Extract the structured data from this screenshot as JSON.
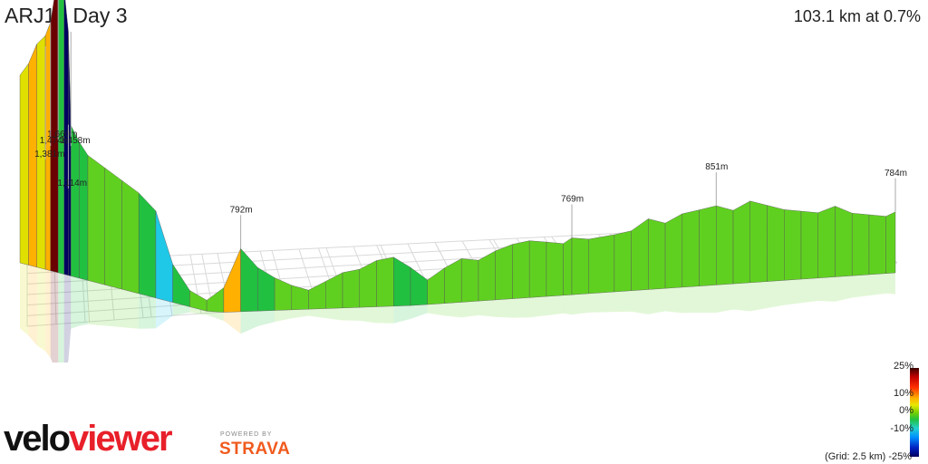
{
  "header": {
    "title": "ARJ17 Day 3",
    "summary": "103.1 km at 0.7%"
  },
  "gradient_scale": {
    "ticks": [
      "25%",
      "10%",
      "0%",
      "-10%"
    ],
    "bottom_tick": "-25%",
    "grid_note": "(Grid: 2.5 km)"
  },
  "branding": {
    "logo_part1": "velo",
    "logo_part2": "viewer",
    "powered_by": "POWERED BY",
    "strava": "STRAVA"
  },
  "chart_data": {
    "type": "area",
    "title": "ARJ17 Day 3",
    "subtitle": "103.1 km at 0.7%",
    "xlabel": "",
    "ylabel": "",
    "xlim": [
      0,
      103.1
    ],
    "grid": true,
    "color_scale": {
      "min": -25,
      "max": 25,
      "labels": [
        "25%",
        "10%",
        "0%",
        "-10%",
        "-25%"
      ]
    },
    "elevation_labels": [
      {
        "label": "1,660m",
        "x": 4.5,
        "y": 1660
      },
      {
        "label": "1,474m",
        "x": 3.6,
        "y": 1474
      },
      {
        "label": "1,458m",
        "x": 6.0,
        "y": 1458
      },
      {
        "label": "1,381m",
        "x": 3.0,
        "y": 1381
      },
      {
        "label": "1,114m",
        "x": 5.7,
        "y": 1114
      },
      {
        "label": "792m",
        "x": 26.0,
        "y": 792
      },
      {
        "label": "769m",
        "x": 65.0,
        "y": 769
      },
      {
        "label": "851m",
        "x": 82.0,
        "y": 851
      },
      {
        "label": "784m",
        "x": 103.1,
        "y": 784
      }
    ],
    "x": [
      0,
      1,
      2,
      3,
      3.6,
      4.5,
      5.2,
      5.7,
      6,
      7,
      8,
      10,
      12,
      14,
      16,
      18,
      20,
      22,
      24,
      26,
      28,
      30,
      32,
      34,
      36,
      38,
      40,
      42,
      44,
      46,
      48,
      50,
      52,
      54,
      56,
      58,
      60,
      62,
      64,
      65,
      67,
      70,
      72,
      74,
      76,
      78,
      80,
      82,
      84,
      86,
      88,
      90,
      92,
      94,
      96,
      98,
      100,
      102,
      103.1
    ],
    "y": [
      1250,
      1300,
      1381,
      1420,
      1474,
      1660,
      1610,
      1458,
      1114,
      1060,
      1020,
      990,
      960,
      930,
      880,
      700,
      620,
      600,
      650,
      792,
      720,
      680,
      650,
      630,
      660,
      690,
      700,
      730,
      740,
      700,
      650,
      690,
      720,
      710,
      740,
      760,
      769,
      760,
      750,
      769,
      760,
      770,
      780,
      820,
      800,
      830,
      840,
      851,
      830,
      860,
      840,
      820,
      810,
      800,
      820,
      790,
      780,
      770,
      784
    ]
  }
}
